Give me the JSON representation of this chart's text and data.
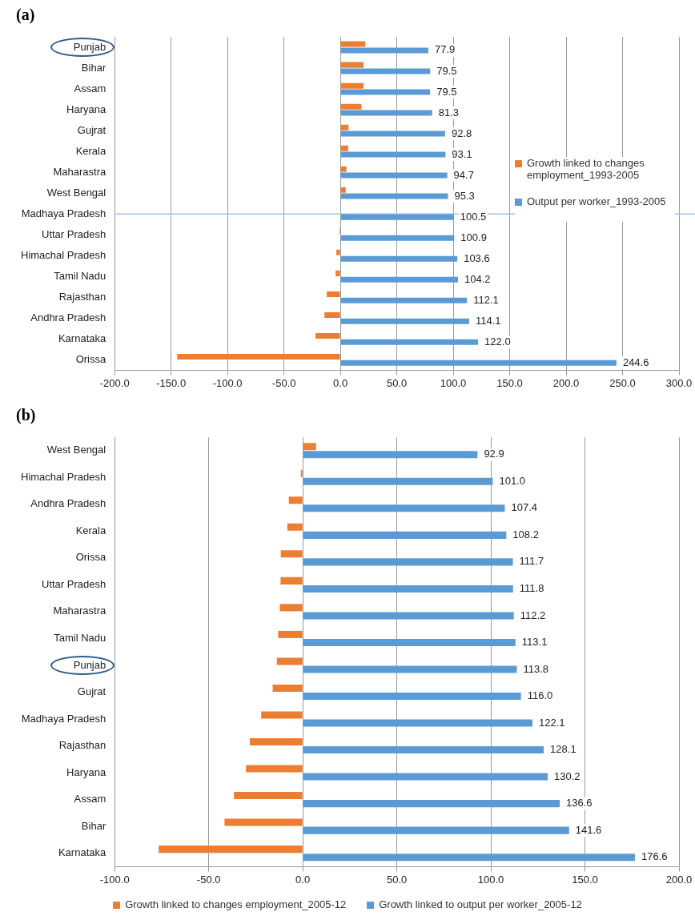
{
  "chart_data": [
    {
      "type": "bar",
      "orientation": "horizontal",
      "title": "(a)",
      "categories": [
        "Punjab",
        "Bihar",
        "Assam",
        "Haryana",
        "Gujrat",
        "Kerala",
        "Maharastra",
        "West Bengal",
        "Madhaya Pradesh",
        "Uttar Pradesh",
        "Himachal Pradesh",
        "Tamil Nadu",
        "Rajasthan",
        "Andhra Pradesh",
        "Karnataka",
        "Orissa"
      ],
      "series": [
        {
          "name": "Growth linked to changes employment_1993-2005",
          "color": "#ed7d31",
          "values": [
            22.1,
            20.5,
            20.5,
            18.7,
            7.2,
            6.9,
            5.3,
            4.7,
            null,
            -0.9,
            -3.6,
            -4.2,
            -12.1,
            -14.1,
            -22.0,
            -144.6
          ]
        },
        {
          "name": "Output per worker_1993-2005",
          "color": "#5b9bd5",
          "values": [
            77.9,
            79.5,
            79.5,
            81.3,
            92.8,
            93.1,
            94.7,
            95.3,
            100.5,
            100.9,
            103.6,
            104.2,
            112.1,
            114.1,
            122.0,
            244.6
          ],
          "value_labels": [
            "77.9",
            "79.5",
            "79.5",
            "81.3",
            "92.8",
            "93.1",
            "94.7",
            "95.3",
            "100.5",
            "100.9",
            "103.6",
            "104.2",
            "112.1",
            "114.1",
            "122.0",
            "244.6"
          ]
        }
      ],
      "xlim": [
        -200,
        300
      ],
      "xticks": [
        {
          "value": -200,
          "label": "-200.0"
        },
        {
          "value": -150,
          "label": "-150.0"
        },
        {
          "value": -100,
          "label": "-100.0"
        },
        {
          "value": -50,
          "label": "-50.0"
        },
        {
          "value": 0,
          "label": "0.0"
        },
        {
          "value": 50,
          "label": "50.0"
        },
        {
          "value": 100,
          "label": "100.0"
        },
        {
          "value": 150,
          "label": "150.0"
        },
        {
          "value": 200,
          "label": "200.0"
        },
        {
          "value": 250,
          "label": "250.0"
        },
        {
          "value": 300,
          "label": "300.0"
        }
      ],
      "grid": "x",
      "legend": "right",
      "ref_lines": [
        {
          "axis": "y",
          "value": "Madhaya Pradesh",
          "color": "#9dc3e6"
        }
      ]
    },
    {
      "type": "bar",
      "orientation": "horizontal",
      "title": "(b)",
      "categories": [
        "West Bengal",
        "Himachal Pradesh",
        "Andhra Pradesh",
        "Kerala",
        "Orissa",
        "Uttar Pradesh",
        "Maharastra",
        "Tamil Nadu",
        "Punjab",
        "Gujrat",
        "Madhaya Pradesh",
        "Rajasthan",
        "Haryana",
        "Assam",
        "Bihar",
        "Karnataka"
      ],
      "series": [
        {
          "name": "Growth linked to changes employment_2005-12",
          "color": "#ed7d31",
          "values": [
            7.1,
            -1.0,
            -7.4,
            -8.2,
            -11.7,
            -11.8,
            -12.2,
            -13.1,
            -13.8,
            -16.0,
            -22.1,
            -28.1,
            -30.2,
            -36.6,
            -41.6,
            -76.6
          ]
        },
        {
          "name": "Growth linked to output per worker_2005-12",
          "color": "#5b9bd5",
          "values": [
            92.9,
            101.0,
            107.4,
            108.2,
            111.7,
            111.8,
            112.2,
            113.1,
            113.8,
            116.0,
            122.1,
            128.1,
            130.2,
            136.6,
            141.6,
            176.6
          ],
          "value_labels": [
            "92.9",
            "101.0",
            "107.4",
            "108.2",
            "111.7",
            "111.8",
            "112.2",
            "113.1",
            "113.8",
            "116.0",
            "122.1",
            "128.1",
            "130.2",
            "136.6",
            "141.6",
            "176.6"
          ]
        }
      ],
      "xlim": [
        -100,
        200
      ],
      "xticks": [
        {
          "value": -100,
          "label": "-100.0"
        },
        {
          "value": -50,
          "label": "-50.0"
        },
        {
          "value": 0,
          "label": "0.0"
        },
        {
          "value": 50,
          "label": "50.0"
        },
        {
          "value": 100,
          "label": "100.0"
        },
        {
          "value": 150,
          "label": "150.0"
        },
        {
          "value": 200,
          "label": "200.0"
        }
      ],
      "grid": "x",
      "legend": "bottom"
    }
  ]
}
